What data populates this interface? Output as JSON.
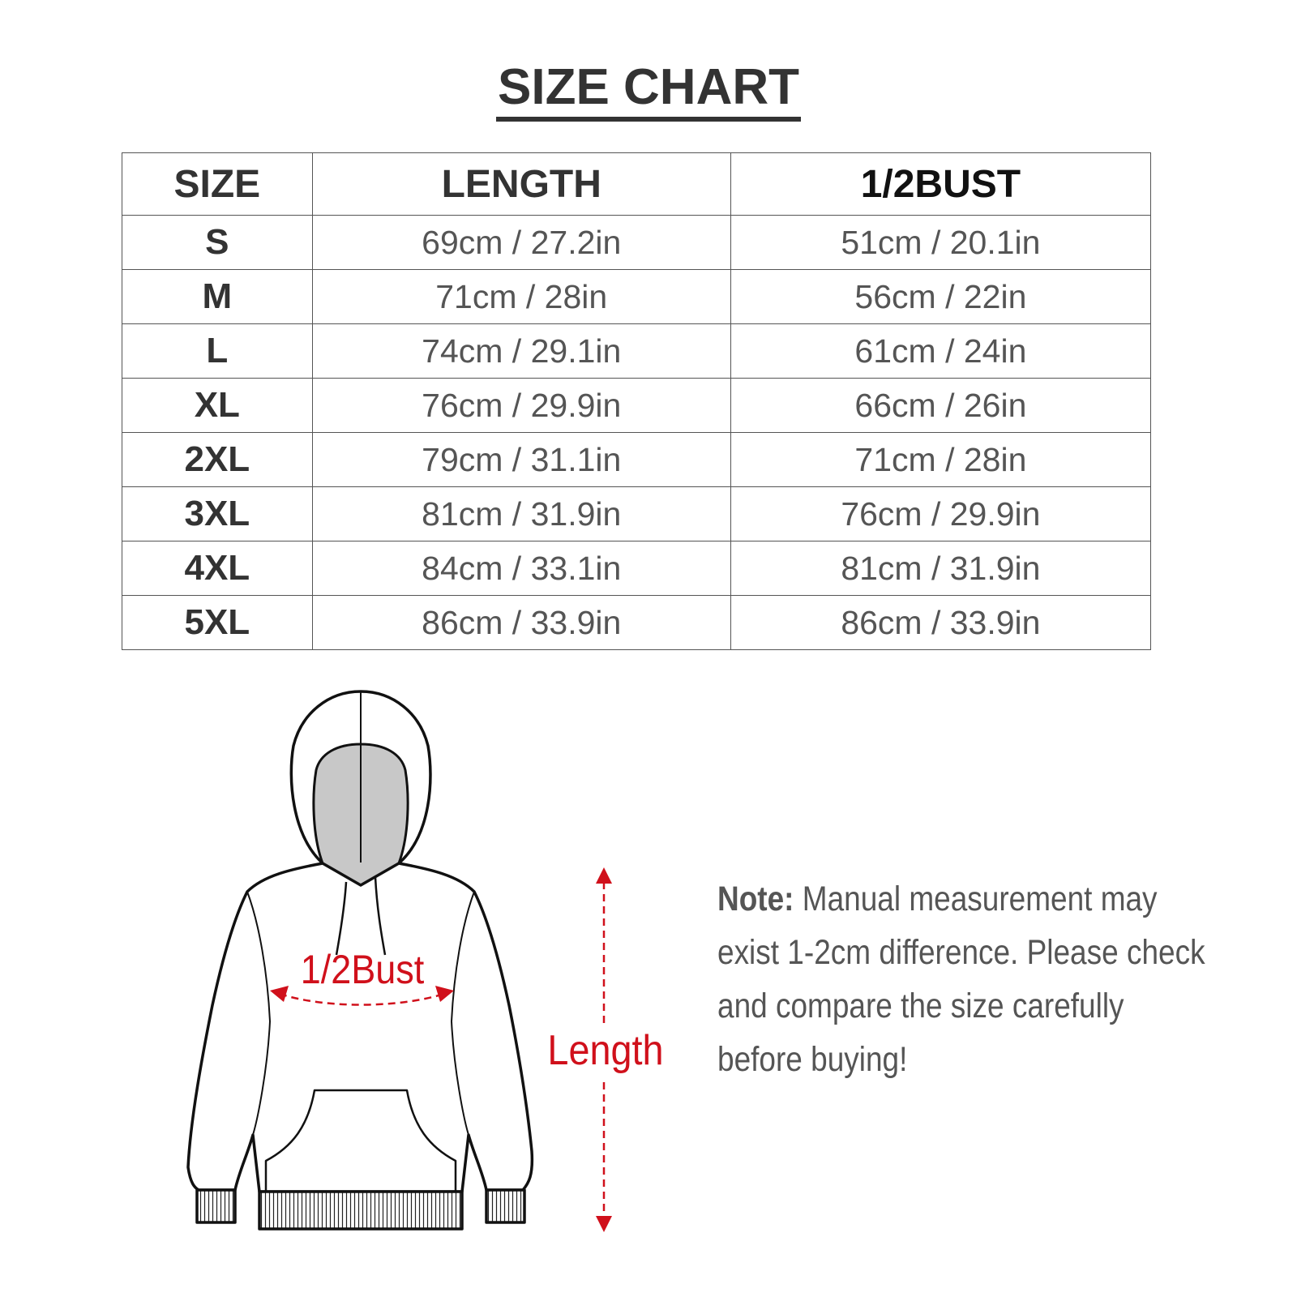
{
  "title": "SIZE CHART",
  "table": {
    "headers": [
      "SIZE",
      "LENGTH",
      "1/2BUST"
    ],
    "rows": [
      [
        "S",
        "69cm / 27.2in",
        "51cm / 20.1in"
      ],
      [
        "M",
        "71cm / 28in",
        "56cm / 22in"
      ],
      [
        "L",
        "74cm / 29.1in",
        "61cm / 24in"
      ],
      [
        "XL",
        "76cm / 29.9in",
        "66cm / 26in"
      ],
      [
        "2XL",
        "79cm / 31.1in",
        "71cm / 28in"
      ],
      [
        "3XL",
        "81cm / 31.9in",
        "76cm / 29.9in"
      ],
      [
        "4XL",
        "84cm / 33.1in",
        "81cm / 31.9in"
      ],
      [
        "5XL",
        "86cm / 33.9in",
        "86cm / 33.9in"
      ]
    ]
  },
  "diagram": {
    "bust_label": "1/2Bust",
    "length_label": "Length",
    "accent_color": "#d0101b"
  },
  "note": {
    "label": "Note:",
    "text": " Manual measurement may exist 1-2cm difference. Please check and compare the size carefully before buying!"
  }
}
